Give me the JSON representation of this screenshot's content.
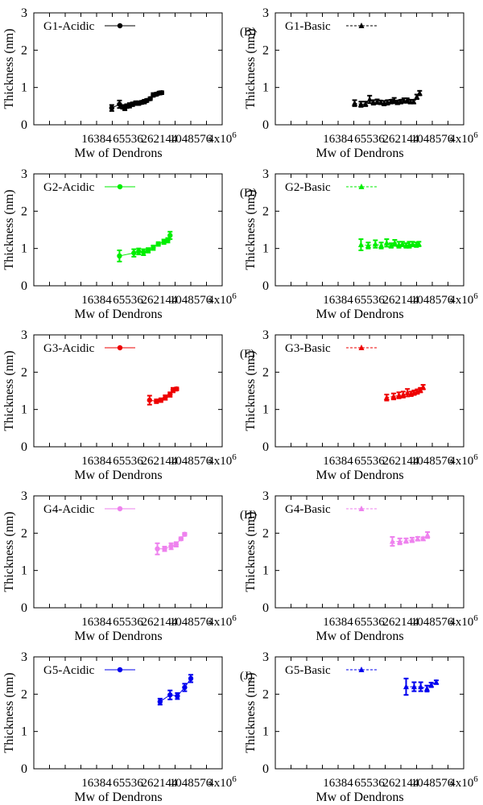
{
  "chart_data": [
    {
      "type": "scatter",
      "panel_label": "",
      "ylabel": "Thickness (nm)",
      "xlabel": "Mw of Dendrons",
      "xticks": [
        "16384",
        "65536",
        "262144",
        "1048576",
        "4x10^6"
      ],
      "yticks": [
        "0",
        "1",
        "2",
        "3"
      ],
      "ylim": [
        0,
        3
      ],
      "legend_position": "top-left",
      "grid": false,
      "series": [
        {
          "name": "G1-Acidic",
          "marker": "circle",
          "color": "#000000",
          "line_style": "solid",
          "x": [
            32000,
            45000,
            52000,
            57000,
            62000,
            70000,
            80000,
            92000,
            105000,
            120000,
            135000,
            150000,
            175000,
            200000,
            230000,
            260000,
            290000
          ],
          "y": [
            0.45,
            0.55,
            0.48,
            0.45,
            0.5,
            0.52,
            0.55,
            0.58,
            0.58,
            0.6,
            0.62,
            0.65,
            0.7,
            0.8,
            0.82,
            0.85,
            0.86
          ],
          "err": [
            0.08,
            0.1,
            0.05,
            0.06,
            0.05,
            0.06,
            0.05,
            0.05,
            0.05,
            0.04,
            0.05,
            0.04,
            0.04,
            0.05,
            0.04,
            0.04,
            0.04
          ]
        }
      ]
    },
    {
      "type": "scatter",
      "panel_label": "(B)",
      "ylabel": "Thickness (nm)",
      "xlabel": "Mw of Dendrons",
      "xticks": [
        "16384",
        "65536",
        "262144",
        "1048576",
        "4x10^6"
      ],
      "yticks": [
        "0",
        "1",
        "2",
        "3"
      ],
      "ylim": [
        0,
        3
      ],
      "legend_position": "top-left",
      "grid": false,
      "series": [
        {
          "name": "G1-Basic",
          "marker": "triangle",
          "color": "#000000",
          "line_style": "dashed",
          "x": [
            34000,
            45000,
            55000,
            66000,
            78000,
            92000,
            108000,
            125000,
            145000,
            170000,
            195000,
            225000,
            260000,
            300000,
            345000,
            400000,
            460000,
            530000,
            600000
          ],
          "y": [
            0.58,
            0.55,
            0.56,
            0.68,
            0.6,
            0.62,
            0.6,
            0.58,
            0.6,
            0.62,
            0.65,
            0.6,
            0.62,
            0.65,
            0.65,
            0.62,
            0.62,
            0.75,
            0.85
          ],
          "err": [
            0.08,
            0.07,
            0.06,
            0.1,
            0.06,
            0.06,
            0.05,
            0.06,
            0.06,
            0.05,
            0.07,
            0.05,
            0.05,
            0.06,
            0.06,
            0.05,
            0.05,
            0.06,
            0.06
          ]
        }
      ]
    },
    {
      "type": "scatter",
      "panel_label": "",
      "ylabel": "Thickness (nm)",
      "xlabel": "Mw of Dendrons",
      "xticks": [
        "16384",
        "65536",
        "262144",
        "1048576",
        "4x10^6"
      ],
      "yticks": [
        "0",
        "1",
        "2",
        "3"
      ],
      "ylim": [
        0,
        3
      ],
      "legend_position": "top-left",
      "grid": false,
      "series": [
        {
          "name": "G2-Acidic",
          "marker": "circle",
          "color": "#00ee00",
          "line_style": "solid",
          "x": [
            45000,
            85000,
            105000,
            130000,
            160000,
            200000,
            250000,
            320000,
            380000,
            420000
          ],
          "y": [
            0.8,
            0.88,
            0.92,
            0.9,
            0.95,
            1.02,
            1.12,
            1.18,
            1.22,
            1.35
          ],
          "err": [
            0.15,
            0.1,
            0.08,
            0.08,
            0.06,
            0.06,
            0.05,
            0.06,
            0.06,
            0.1
          ]
        }
      ]
    },
    {
      "type": "scatter",
      "panel_label": "(D)",
      "ylabel": "Thickness (nm)",
      "xlabel": "Mw of Dendrons",
      "xticks": [
        "16384",
        "65536",
        "262144",
        "1048576",
        "4x10^6"
      ],
      "yticks": [
        "0",
        "1",
        "2",
        "3"
      ],
      "ylim": [
        0,
        3
      ],
      "legend_position": "top-left",
      "grid": false,
      "series": [
        {
          "name": "G2-Basic",
          "marker": "triangle",
          "color": "#00ee00",
          "line_style": "dashed",
          "x": [
            45000,
            62000,
            85000,
            110000,
            140000,
            170000,
            200000,
            240000,
            280000,
            330000,
            380000,
            440000,
            520000,
            580000
          ],
          "y": [
            1.1,
            1.08,
            1.12,
            1.08,
            1.15,
            1.08,
            1.15,
            1.1,
            1.12,
            1.08,
            1.1,
            1.12,
            1.1,
            1.12
          ],
          "err": [
            0.15,
            0.08,
            0.1,
            0.08,
            0.1,
            0.06,
            0.08,
            0.08,
            0.06,
            0.06,
            0.08,
            0.06,
            0.06,
            0.06
          ]
        }
      ]
    },
    {
      "type": "scatter",
      "panel_label": "",
      "ylabel": "Thickness (nm)",
      "xlabel": "Mw of Dendrons",
      "xticks": [
        "16384",
        "65536",
        "262144",
        "1048576",
        "4x10^6"
      ],
      "yticks": [
        "0",
        "1",
        "2",
        "3"
      ],
      "ylim": [
        0,
        3
      ],
      "legend_position": "top-left",
      "grid": false,
      "series": [
        {
          "name": "G3-Acidic",
          "marker": "circle",
          "color": "#ee0000",
          "line_style": "solid",
          "x": [
            170000,
            230000,
            280000,
            340000,
            420000,
            480000,
            560000
          ],
          "y": [
            1.25,
            1.22,
            1.25,
            1.32,
            1.4,
            1.52,
            1.55
          ],
          "err": [
            0.12,
            0.05,
            0.05,
            0.06,
            0.06,
            0.06,
            0.04
          ]
        }
      ]
    },
    {
      "type": "scatter",
      "panel_label": "(F)",
      "ylabel": "Thickness (nm)",
      "xlabel": "Mw of Dendrons",
      "xticks": [
        "16384",
        "65536",
        "262144",
        "1048576",
        "4x10^6"
      ],
      "yticks": [
        "0",
        "1",
        "2",
        "3"
      ],
      "ylim": [
        0,
        3
      ],
      "legend_position": "top-left",
      "grid": false,
      "series": [
        {
          "name": "G3-Basic",
          "marker": "triangle",
          "color": "#ee0000",
          "line_style": "dashed",
          "x": [
            140000,
            190000,
            240000,
            290000,
            350000,
            410000,
            470000,
            540000,
            620000,
            700000
          ],
          "y": [
            1.32,
            1.35,
            1.38,
            1.4,
            1.45,
            1.42,
            1.45,
            1.48,
            1.52,
            1.6
          ],
          "err": [
            0.08,
            0.08,
            0.08,
            0.08,
            0.1,
            0.06,
            0.06,
            0.06,
            0.06,
            0.06
          ]
        }
      ]
    },
    {
      "type": "scatter",
      "panel_label": "",
      "ylabel": "Thickness (nm)",
      "xlabel": "Mw of Dendrons",
      "xticks": [
        "16384",
        "65536",
        "262144",
        "1048576",
        "4x10^6"
      ],
      "yticks": [
        "0",
        "1",
        "2",
        "3"
      ],
      "ylim": [
        0,
        3
      ],
      "legend_position": "top-left",
      "grid": false,
      "series": [
        {
          "name": "G4-Acidic",
          "marker": "circle",
          "color": "#ee82ee",
          "line_style": "solid",
          "x": [
            240000,
            330000,
            440000,
            550000,
            680000,
            800000
          ],
          "y": [
            1.58,
            1.58,
            1.65,
            1.7,
            1.85,
            1.97
          ],
          "err": [
            0.15,
            0.06,
            0.08,
            0.06,
            0.04,
            0.04
          ]
        }
      ]
    },
    {
      "type": "scatter",
      "panel_label": "(H)",
      "ylabel": "Thickness (nm)",
      "xlabel": "Mw of Dendrons",
      "xticks": [
        "16384",
        "65536",
        "262144",
        "1048576",
        "4x10^6"
      ],
      "yticks": [
        "0",
        "1",
        "2",
        "3"
      ],
      "ylim": [
        0,
        3
      ],
      "legend_position": "top-left",
      "grid": false,
      "series": [
        {
          "name": "G4-Basic",
          "marker": "triangle",
          "color": "#ee82ee",
          "line_style": "dashed",
          "x": [
            180000,
            250000,
            330000,
            430000,
            550000,
            700000,
            850000
          ],
          "y": [
            1.78,
            1.78,
            1.8,
            1.82,
            1.85,
            1.85,
            1.95
          ],
          "err": [
            0.12,
            0.08,
            0.06,
            0.06,
            0.05,
            0.04,
            0.08
          ]
        }
      ]
    },
    {
      "type": "scatter",
      "panel_label": "",
      "ylabel": "Thickness (nm)",
      "xlabel": "Mw of Dendrons",
      "xticks": [
        "16384",
        "65536",
        "262144",
        "1048576",
        "4x10^6"
      ],
      "yticks": [
        "0",
        "1",
        "2",
        "3"
      ],
      "ylim": [
        0,
        3
      ],
      "legend_position": "top-left",
      "grid": false,
      "series": [
        {
          "name": "G5-Acidic",
          "marker": "circle",
          "color": "#0000ee",
          "line_style": "solid",
          "x": [
            270000,
            420000,
            580000,
            800000,
            1050000
          ],
          "y": [
            1.8,
            1.98,
            1.95,
            2.18,
            2.42
          ],
          "err": [
            0.08,
            0.12,
            0.08,
            0.1,
            0.1
          ]
        }
      ]
    },
    {
      "type": "scatter",
      "panel_label": "(J)",
      "ylabel": "Thickness (nm)",
      "xlabel": "Mw of Dendrons",
      "xticks": [
        "16384",
        "65536",
        "262144",
        "1048576",
        "4x10^6"
      ],
      "yticks": [
        "0",
        "1",
        "2",
        "3"
      ],
      "ylim": [
        0,
        3
      ],
      "legend_position": "top-left",
      "grid": false,
      "series": [
        {
          "name": "G5-Basic",
          "marker": "triangle",
          "color": "#0000ee",
          "line_style": "dashed",
          "x": [
            330000,
            470000,
            630000,
            830000,
            1000000,
            1250000
          ],
          "y": [
            2.2,
            2.2,
            2.2,
            2.15,
            2.25,
            2.32
          ],
          "err": [
            0.22,
            0.12,
            0.12,
            0.08,
            0.06,
            0.05
          ]
        }
      ]
    }
  ]
}
